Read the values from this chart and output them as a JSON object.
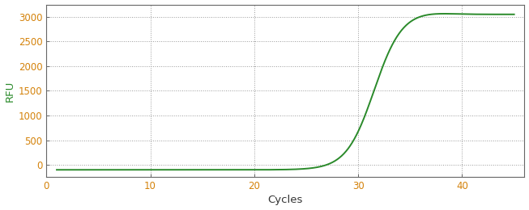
{
  "title": "",
  "xlabel": "Cycles",
  "ylabel": "RFU",
  "xlim": [
    0,
    46
  ],
  "ylim": [
    -250,
    3250
  ],
  "xticks": [
    0,
    10,
    20,
    30,
    40
  ],
  "yticks": [
    0,
    500,
    1000,
    1500,
    2000,
    2500,
    3000
  ],
  "line_color": "#2a8a2a",
  "line_width": 1.4,
  "background_color": "#ffffff",
  "plot_bg_color": "#ffffff",
  "grid_color": "#999999",
  "grid_style": "dotted",
  "curve_midpoint": 31.5,
  "curve_steepness": 0.75,
  "curve_min": -100,
  "curve_max": 3050,
  "curve_peak_x": 35.5,
  "curve_peak_y": 3110,
  "x_start": 1,
  "x_end": 45,
  "tick_label_color": "#d4820a",
  "ylabel_color": "#2a8a2a",
  "xlabel_color": "#333333",
  "axis_color": "#555555",
  "spine_color": "#666666"
}
